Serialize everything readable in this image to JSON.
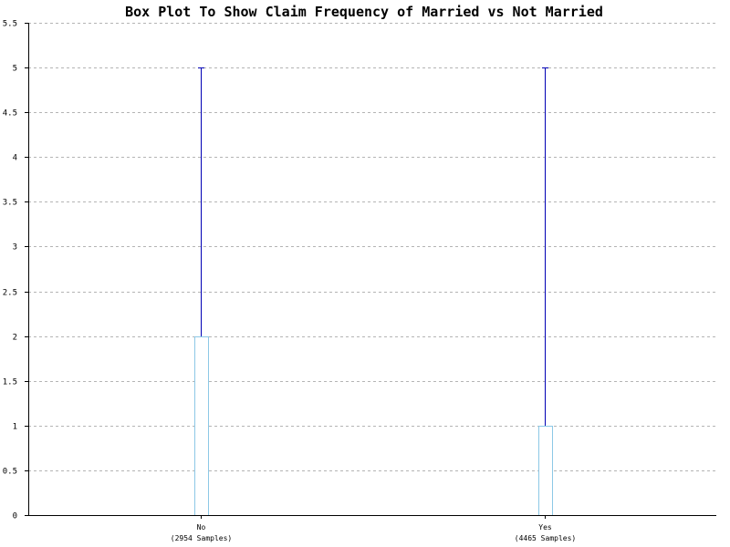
{
  "chart_data": {
    "type": "box",
    "title": "Box Plot To Show Claim Frequency of Married vs Not Married",
    "xlabel": "",
    "ylabel": "",
    "ylim": [
      0,
      5.5
    ],
    "y_ticks": [
      "0",
      "0.5",
      "1",
      "1.5",
      "2",
      "2.5",
      "3",
      "3.5",
      "4",
      "4.5",
      "5",
      "5.5"
    ],
    "grid": true,
    "legend": "none",
    "colors": {
      "whisker": "#0000b4",
      "box": "#8cc8e6",
      "grid": "#b4b4b4",
      "axis": "#000000"
    },
    "categories": [
      {
        "label": "No",
        "samples": "(2954 Samples)",
        "min": 0,
        "q1": 0,
        "median": 0,
        "q3": 2,
        "max": 5
      },
      {
        "label": "Yes",
        "samples": "(4465 Samples)",
        "min": 0,
        "q1": 0,
        "median": 0,
        "q3": 1,
        "max": 5
      }
    ]
  }
}
